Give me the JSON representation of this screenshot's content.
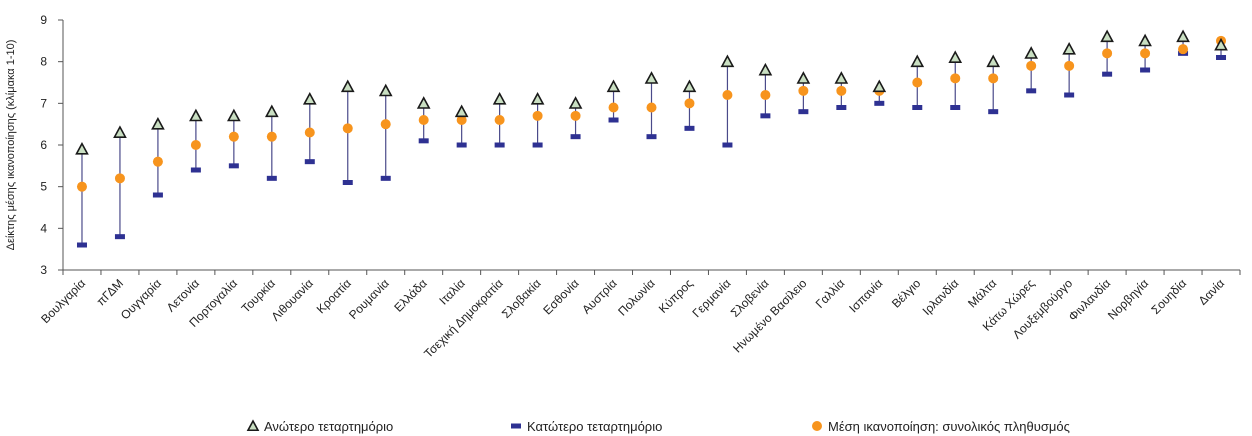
{
  "chart_data": {
    "type": "scatter",
    "ylabel": "Δείκτης μέσης ικανοποίησης (κλίμακα 1-10)",
    "ylim": [
      3,
      9
    ],
    "yticks": [
      3,
      4,
      5,
      6,
      7,
      8,
      9
    ],
    "grid": false,
    "legend_position": "bottom",
    "categories": [
      "Βουλγαρία",
      "πΓΔΜ",
      "Ουγγαρία",
      "Λετονία",
      "Πορτογαλία",
      "Τουρκία",
      "Λιθουανία",
      "Κροατία",
      "Ρουμανία",
      "Ελλάδα",
      "Ιταλία",
      "Τσεχική Δημοκρατία",
      "Σλοβακία",
      "Εσθονία",
      "Αυστρία",
      "Πολωνία",
      "Κύπρος",
      "Γερμανία",
      "Σλοβενία",
      "Ηνωμένο Βασίλειο",
      "Γαλλία",
      "Ισπανία",
      "Βέλγιο",
      "Ιρλανδία",
      "Μάλτα",
      "Κάτω Χώρες",
      "Λουξεμβούργο",
      "Φινλανδία",
      "Νορβηγία",
      "Σουηδία",
      "Δανία"
    ],
    "series": [
      {
        "name": "Ανώτερο τεταρτημόριο",
        "marker": "triangle",
        "color": "#1a1a1a",
        "fill": "#c9dfc2",
        "values": [
          5.9,
          6.3,
          6.5,
          6.7,
          6.7,
          6.8,
          7.1,
          7.4,
          7.3,
          7.0,
          6.8,
          7.1,
          7.1,
          7.0,
          7.4,
          7.6,
          7.4,
          8.0,
          7.8,
          7.6,
          7.6,
          7.4,
          8.0,
          8.1,
          8.0,
          8.2,
          8.3,
          8.6,
          8.5,
          8.6,
          8.4
        ]
      },
      {
        "name": "Κατώτερο τεταρτημόριο",
        "marker": "dash",
        "color": "#2e3192",
        "values": [
          3.6,
          3.8,
          4.8,
          5.4,
          5.5,
          5.2,
          5.6,
          5.1,
          5.2,
          6.1,
          6.0,
          6.0,
          6.0,
          6.2,
          6.6,
          6.2,
          6.4,
          6.0,
          6.7,
          6.8,
          6.9,
          7.0,
          6.9,
          6.9,
          6.8,
          7.3,
          7.2,
          7.7,
          7.8,
          8.2,
          8.1
        ]
      },
      {
        "name": "Μέση ικανοποίηση: συνολικός πληθυσμός",
        "marker": "circle",
        "color": "#f7941d",
        "values": [
          5.0,
          5.2,
          5.6,
          6.0,
          6.2,
          6.2,
          6.3,
          6.4,
          6.5,
          6.6,
          6.6,
          6.6,
          6.7,
          6.7,
          6.9,
          6.9,
          7.0,
          7.2,
          7.2,
          7.3,
          7.3,
          7.3,
          7.5,
          7.6,
          7.6,
          7.9,
          7.9,
          8.2,
          8.2,
          8.3,
          8.5
        ]
      }
    ],
    "range_line_color": "#4a4a8a"
  }
}
